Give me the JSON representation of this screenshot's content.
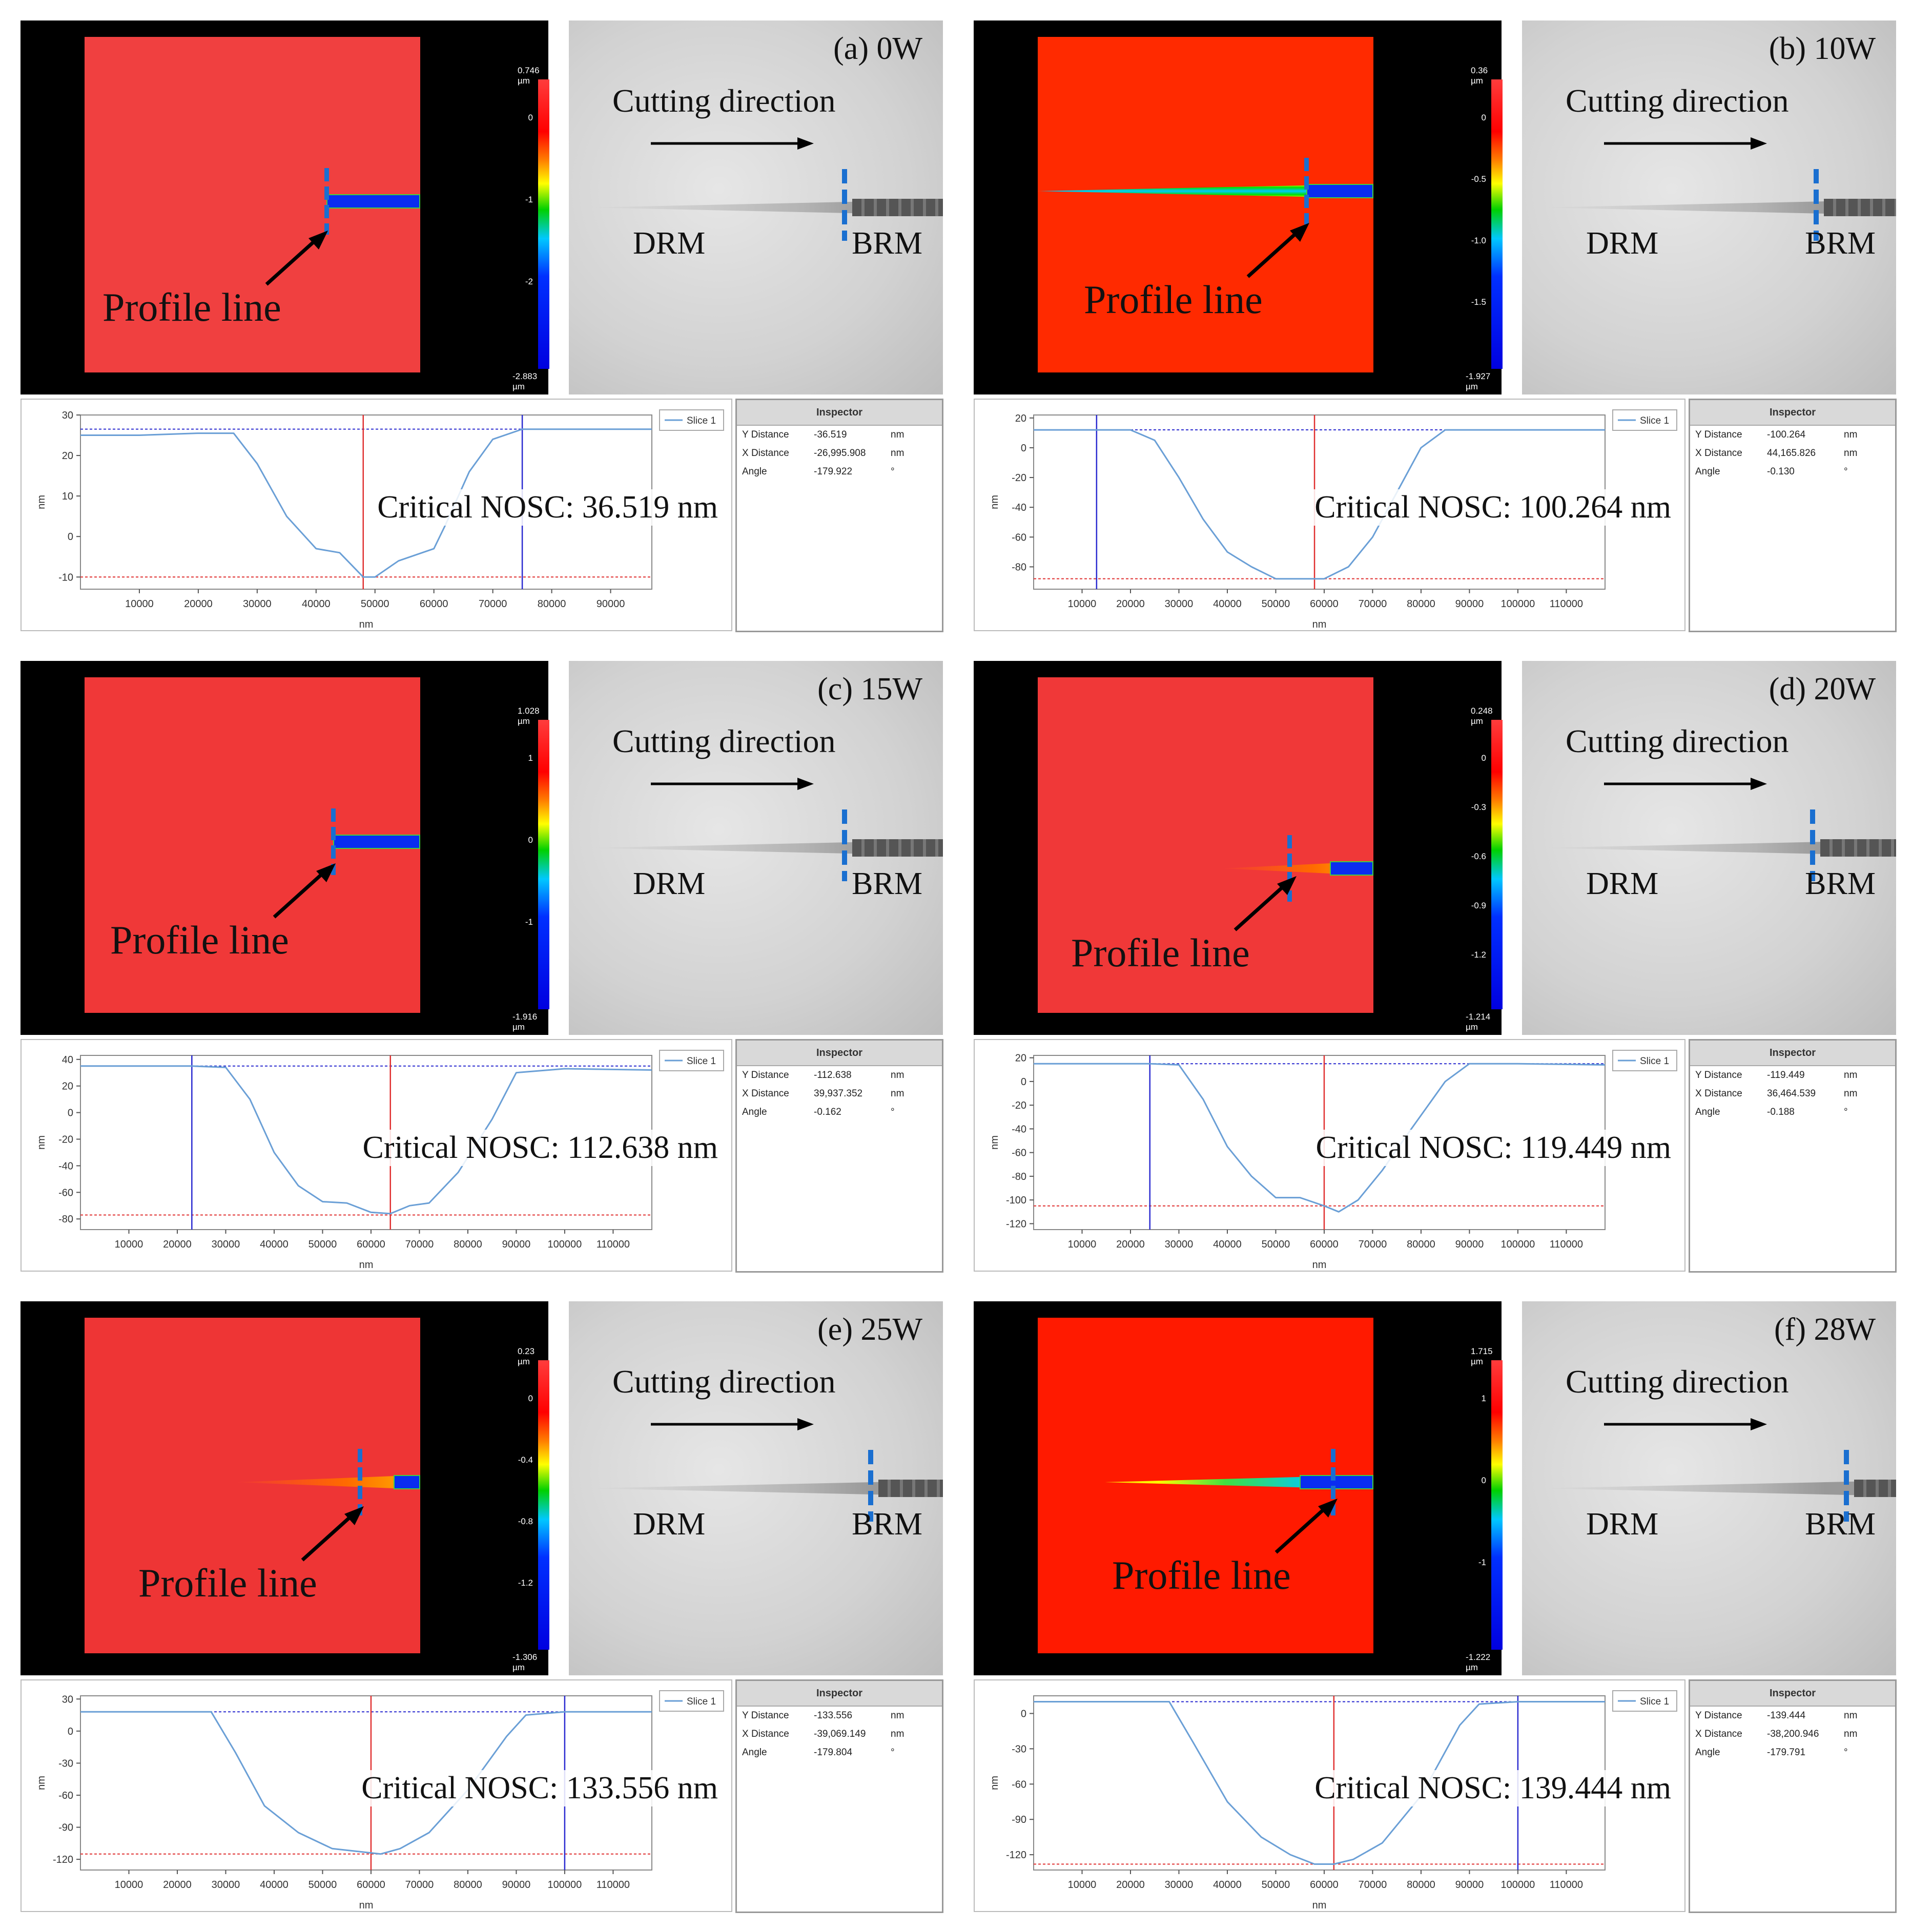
{
  "common": {
    "profile_line_label": "Profile line",
    "cutting_direction_label": "Cutting direction",
    "drm_label": "DRM",
    "brm_label": "BRM",
    "x_axis_label": "nm",
    "y_axis_label": "nm",
    "legend_label": "Slice 1",
    "inspector_title": "Inspector",
    "inspector_rows": [
      "Y Distance",
      "X Distance",
      "Angle"
    ],
    "critical_prefix": "Critical NOSC:"
  },
  "colors": {
    "profile": "#6a9fd6",
    "red_cursor": "#e03030",
    "blue_cursor": "#2a2ad0",
    "marker": "#1a6fd0"
  },
  "chart_data": [
    {
      "type": "line",
      "panel": "(a) 0W",
      "colorbar_top": "0.746 µm",
      "colorbar_bottom": "-2.883 µm",
      "colorbar_ticks": [
        "0",
        "-1",
        "-2"
      ],
      "y_distance": "-36.519",
      "x_distance": "-26,995.908",
      "angle": "-179.922",
      "unit": "nm",
      "angle_unit": "°",
      "critical_nosc": "36.519 nm",
      "xlim": [
        0,
        97000
      ],
      "ylim": [
        -13,
        30
      ],
      "xticks": [
        10000,
        20000,
        30000,
        40000,
        50000,
        60000,
        70000,
        80000,
        90000
      ],
      "yticks": [
        30,
        20,
        10,
        0,
        -10
      ],
      "ref_top": 26.5,
      "ref_bottom": -10,
      "red_cursor_x": 48000,
      "blue_cursor_x": 75000,
      "x": [
        0,
        10000,
        20000,
        26000,
        30000,
        35000,
        40000,
        44000,
        48000,
        50000,
        54000,
        58000,
        60000,
        62000,
        66000,
        70000,
        75000,
        85000,
        97000
      ],
      "y": [
        25,
        25,
        25.5,
        25.5,
        18,
        5,
        -3,
        -4,
        -10,
        -10,
        -6,
        -4,
        -3,
        3,
        16,
        24,
        26.5,
        26.5,
        26.5
      ]
    },
    {
      "type": "line",
      "panel": "(b) 10W",
      "colorbar_top": "0.36 µm",
      "colorbar_bottom": "-1.927 µm",
      "colorbar_ticks": [
        "0",
        "-0.5",
        "-1.0",
        "-1.5"
      ],
      "y_distance": "-100.264",
      "x_distance": "44,165.826",
      "angle": "-0.130",
      "unit": "nm",
      "angle_unit": "°",
      "critical_nosc": "100.264 nm",
      "xlim": [
        0,
        118000
      ],
      "ylim": [
        -95,
        22
      ],
      "xticks": [
        10000,
        20000,
        30000,
        40000,
        50000,
        60000,
        70000,
        80000,
        90000,
        100000,
        110000
      ],
      "yticks": [
        20,
        0,
        -20,
        -40,
        -60,
        -80
      ],
      "ref_top": 12,
      "ref_bottom": -88,
      "red_cursor_x": 58000,
      "blue_cursor_x": 13000,
      "x": [
        0,
        13000,
        20000,
        25000,
        30000,
        35000,
        40000,
        45000,
        50000,
        55000,
        60000,
        65000,
        70000,
        75000,
        80000,
        85000,
        90000,
        100000,
        118000
      ],
      "y": [
        12,
        12,
        12,
        5,
        -20,
        -48,
        -70,
        -80,
        -88,
        -88,
        -88,
        -80,
        -60,
        -30,
        0,
        12,
        12,
        12,
        12
      ]
    },
    {
      "type": "line",
      "panel": "(c) 15W",
      "colorbar_top": "1.028 µm",
      "colorbar_bottom": "-1.916 µm",
      "colorbar_ticks": [
        "1",
        "0",
        "-1"
      ],
      "y_distance": "-112.638",
      "x_distance": "39,937.352",
      "angle": "-0.162",
      "unit": "nm",
      "angle_unit": "°",
      "critical_nosc": "112.638 nm",
      "xlim": [
        0,
        118000
      ],
      "ylim": [
        -88,
        43
      ],
      "xticks": [
        10000,
        20000,
        30000,
        40000,
        50000,
        60000,
        70000,
        80000,
        90000,
        100000,
        110000
      ],
      "yticks": [
        40,
        20,
        0,
        -20,
        -40,
        -60,
        -80
      ],
      "ref_top": 35,
      "ref_bottom": -77,
      "red_cursor_x": 64000,
      "blue_cursor_x": 23000,
      "x": [
        0,
        23000,
        30000,
        35000,
        40000,
        45000,
        50000,
        55000,
        60000,
        64000,
        68000,
        72000,
        78000,
        85000,
        90000,
        100000,
        118000
      ],
      "y": [
        35,
        35,
        34,
        10,
        -30,
        -55,
        -67,
        -68,
        -75,
        -76,
        -70,
        -68,
        -45,
        -5,
        30,
        33,
        32
      ]
    },
    {
      "type": "line",
      "panel": "(d) 20W",
      "colorbar_top": "0.248 µm",
      "colorbar_bottom": "-1.214 µm",
      "colorbar_ticks": [
        "0",
        "-0.3",
        "-0.6",
        "-0.9",
        "-1.2"
      ],
      "y_distance": "-119.449",
      "x_distance": "36,464.539",
      "angle": "-0.188",
      "unit": "nm",
      "angle_unit": "°",
      "critical_nosc": "119.449 nm",
      "xlim": [
        0,
        118000
      ],
      "ylim": [
        -125,
        22
      ],
      "xticks": [
        10000,
        20000,
        30000,
        40000,
        50000,
        60000,
        70000,
        80000,
        90000,
        100000,
        110000
      ],
      "yticks": [
        20,
        0,
        -20,
        -40,
        -60,
        -80,
        -100,
        -120
      ],
      "ref_top": 15,
      "ref_bottom": -105,
      "red_cursor_x": 60000,
      "blue_cursor_x": 24000,
      "x": [
        0,
        24000,
        30000,
        35000,
        40000,
        45000,
        50000,
        55000,
        60000,
        63000,
        67000,
        72000,
        78000,
        85000,
        90000,
        100000,
        118000
      ],
      "y": [
        15,
        15,
        14,
        -15,
        -55,
        -80,
        -98,
        -98,
        -105,
        -110,
        -100,
        -75,
        -40,
        0,
        15,
        15,
        14
      ]
    },
    {
      "type": "line",
      "panel": "(e) 25W",
      "colorbar_top": "0.23 µm",
      "colorbar_bottom": "-1.306 µm",
      "colorbar_ticks": [
        "0",
        "-0.4",
        "-0.8",
        "-1.2"
      ],
      "y_distance": "-133.556",
      "x_distance": "-39,069.149",
      "angle": "-179.804",
      "unit": "nm",
      "angle_unit": "°",
      "critical_nosc": "133.556 nm",
      "xlim": [
        0,
        118000
      ],
      "ylim": [
        -130,
        33
      ],
      "xticks": [
        10000,
        20000,
        30000,
        40000,
        50000,
        60000,
        70000,
        80000,
        90000,
        100000,
        110000
      ],
      "yticks": [
        30,
        0,
        -30,
        -60,
        -90,
        -120
      ],
      "ref_top": 18,
      "ref_bottom": -115,
      "red_cursor_x": 60000,
      "blue_cursor_x": 100000,
      "x": [
        0,
        20000,
        27000,
        32000,
        38000,
        45000,
        52000,
        58000,
        62000,
        66000,
        72000,
        80000,
        88000,
        92000,
        100000,
        118000
      ],
      "y": [
        18,
        18,
        18,
        -20,
        -70,
        -95,
        -110,
        -113,
        -115,
        -110,
        -95,
        -55,
        -5,
        15,
        18,
        18
      ]
    },
    {
      "type": "line",
      "panel": "(f) 28W",
      "colorbar_top": "1.715 µm",
      "colorbar_bottom": "-1.222 µm",
      "colorbar_ticks": [
        "1",
        "0",
        "-1"
      ],
      "y_distance": "-139.444",
      "x_distance": "-38,200.946",
      "angle": "-179.791",
      "unit": "nm",
      "angle_unit": "°",
      "critical_nosc": "139.444 nm",
      "xlim": [
        0,
        118000
      ],
      "ylim": [
        -133,
        15
      ],
      "xticks": [
        10000,
        20000,
        30000,
        40000,
        50000,
        60000,
        70000,
        80000,
        90000,
        100000,
        110000
      ],
      "yticks": [
        0,
        -30,
        -60,
        -90,
        -120
      ],
      "ref_top": 10,
      "ref_bottom": -128,
      "red_cursor_x": 62000,
      "blue_cursor_x": 100000,
      "x": [
        0,
        20000,
        28000,
        33000,
        40000,
        47000,
        53000,
        58000,
        62000,
        66000,
        72000,
        80000,
        88000,
        92000,
        100000,
        118000
      ],
      "y": [
        10,
        10,
        10,
        -25,
        -75,
        -105,
        -120,
        -128,
        -128,
        -124,
        -110,
        -70,
        -10,
        8,
        10,
        10
      ]
    }
  ]
}
